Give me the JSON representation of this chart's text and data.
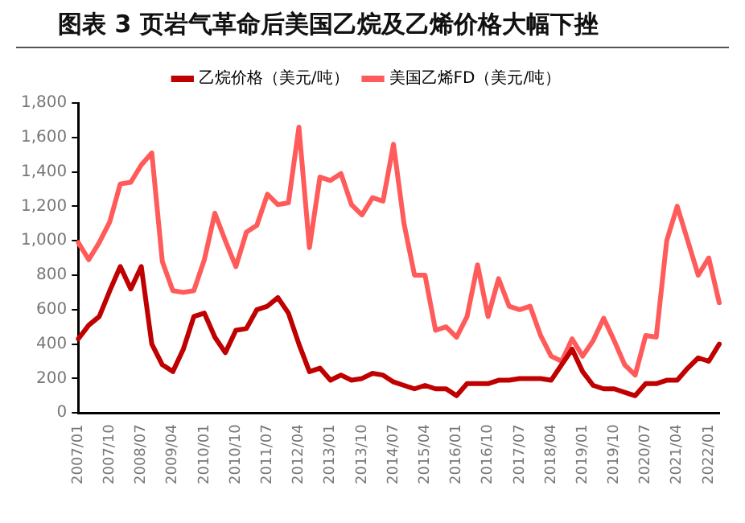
{
  "chart_data": {
    "type": "line",
    "title": "图表 3 页岩气革命后美国乙烷及乙烯价格大幅下挫",
    "categories": [
      "2007/01",
      null,
      null,
      "2007/10",
      null,
      null,
      "2008/07",
      null,
      null,
      "2009/04",
      null,
      null,
      "2010/01",
      null,
      null,
      "2010/10",
      null,
      null,
      "2011/07",
      null,
      null,
      "2012/04",
      null,
      null,
      "2013/01",
      null,
      null,
      "2013/10",
      null,
      null,
      "2014/07",
      null,
      null,
      "2015/04",
      null,
      null,
      "2016/01",
      null,
      null,
      "2016/10",
      null,
      null,
      "2017/07",
      null,
      null,
      "2018/04",
      null,
      null,
      "2019/01",
      null,
      null,
      "2019/10",
      null,
      null,
      "2020/07",
      null,
      null,
      "2021/04",
      null,
      null,
      "2022/01",
      null
    ],
    "series": [
      {
        "name": "乙烷价格（美元/吨）",
        "color": "#c00000",
        "values": [
          430,
          510,
          560,
          710,
          850,
          720,
          850,
          400,
          280,
          240,
          370,
          560,
          580,
          440,
          350,
          480,
          490,
          600,
          620,
          670,
          580,
          400,
          240,
          260,
          190,
          220,
          190,
          200,
          230,
          220,
          180,
          160,
          140,
          160,
          140,
          140,
          100,
          170,
          170,
          170,
          190,
          190,
          200,
          200,
          200,
          190,
          280,
          370,
          240,
          160,
          140,
          140,
          120,
          100,
          170,
          170,
          190,
          190,
          260,
          320,
          300,
          400
        ]
      },
      {
        "name": "美国乙烯FD（美元/吨）",
        "color": "#ff5b5b",
        "values": [
          990,
          890,
          990,
          1110,
          1330,
          1340,
          1440,
          1510,
          880,
          710,
          700,
          710,
          890,
          1160,
          1000,
          850,
          1050,
          1090,
          1270,
          1210,
          1220,
          1660,
          960,
          1370,
          1350,
          1390,
          1210,
          1150,
          1250,
          1230,
          1560,
          1100,
          800,
          800,
          480,
          500,
          440,
          560,
          860,
          560,
          780,
          620,
          600,
          620,
          450,
          330,
          300,
          430,
          330,
          420,
          550,
          420,
          280,
          220,
          450,
          440,
          1000,
          1200,
          1000,
          800,
          900,
          640
        ]
      }
    ],
    "ylim": [
      0,
      1800
    ],
    "yticks": [
      0,
      200,
      400,
      600,
      800,
      {
        "value": 1000,
        "label": "1,000"
      },
      {
        "value": 1200,
        "label": "1,200"
      },
      {
        "value": 1400,
        "label": "1,400"
      },
      {
        "value": 1600,
        "label": "1,600"
      },
      {
        "value": 1800,
        "label": "1,800"
      }
    ],
    "grid": false,
    "legend": "top",
    "marker": "none",
    "line_style": "solid"
  }
}
